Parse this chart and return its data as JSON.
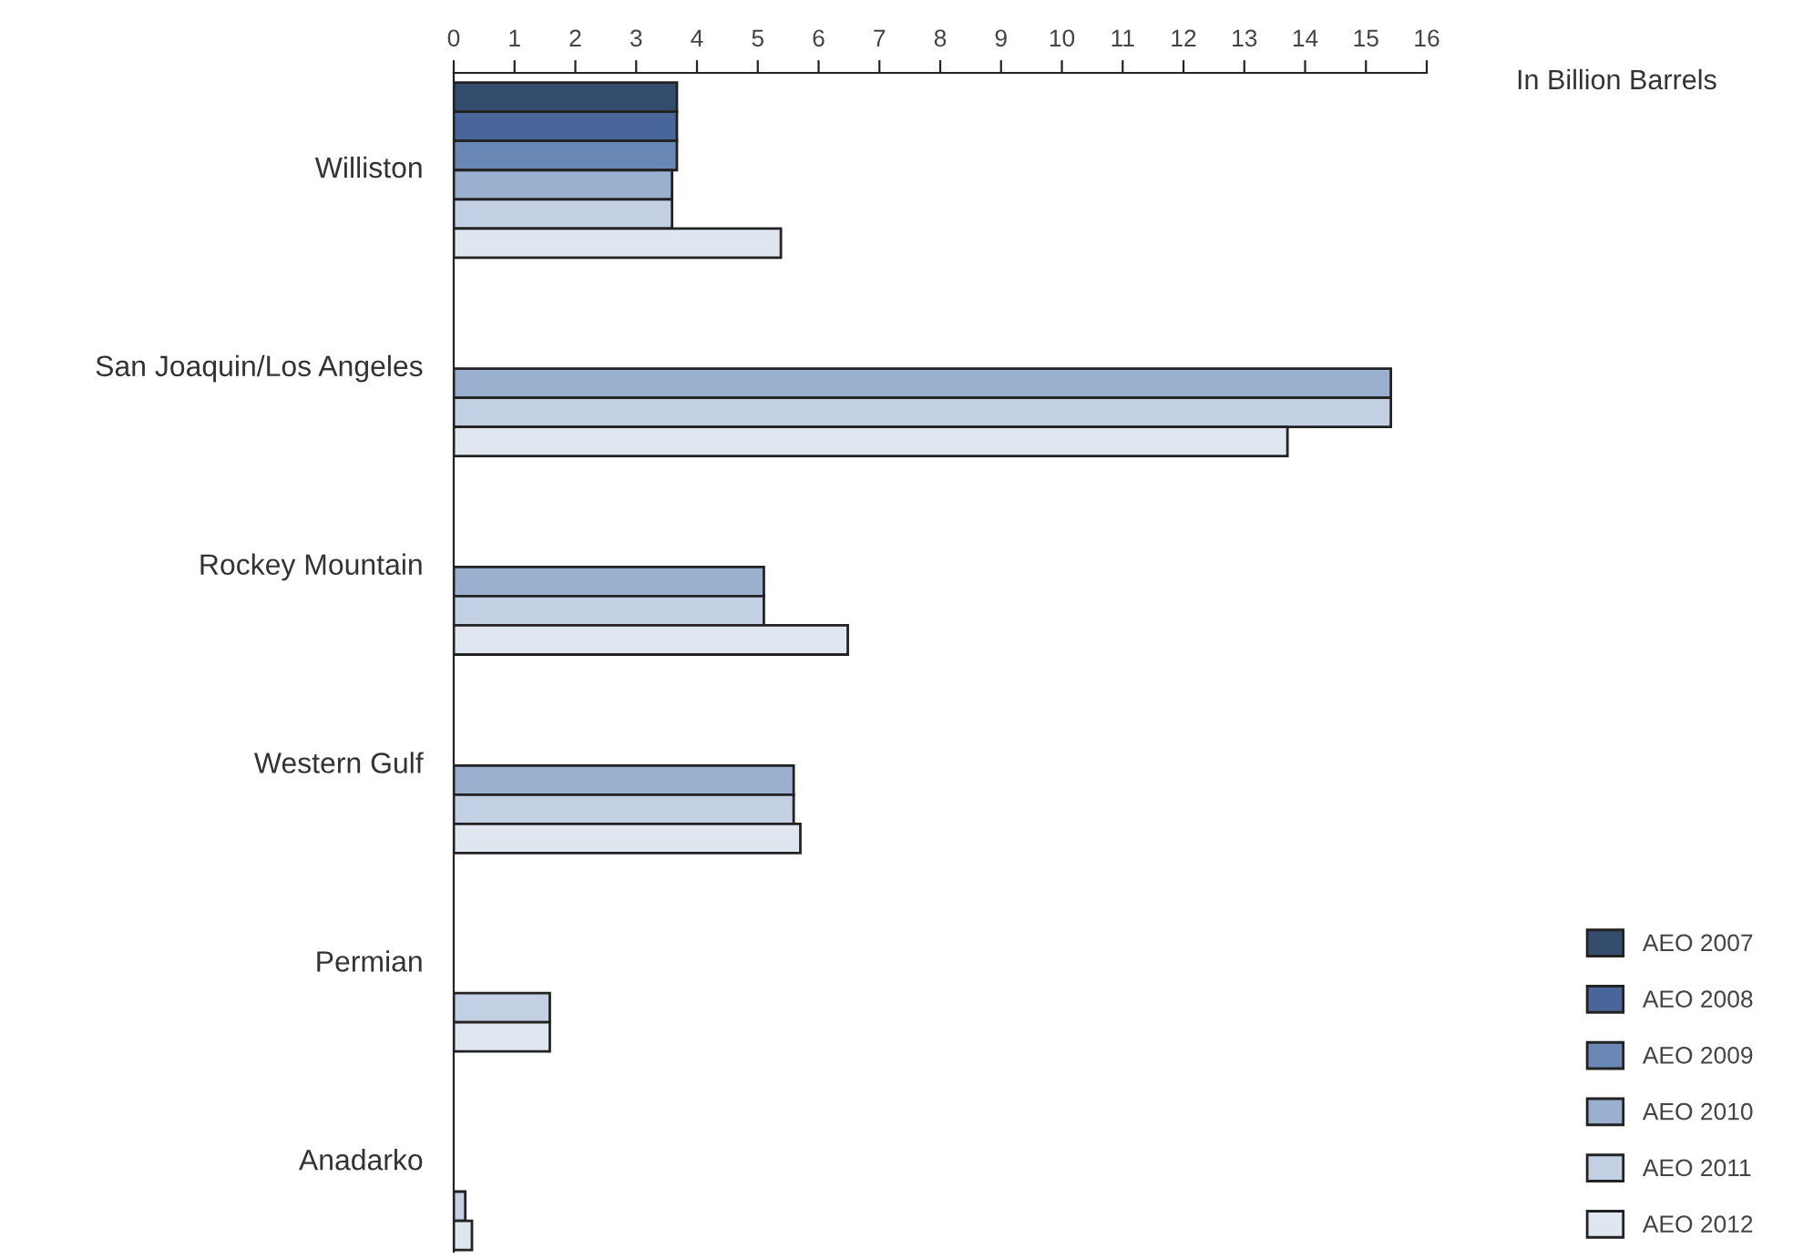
{
  "chart_data": {
    "type": "bar",
    "orientation": "horizontal",
    "xlabel": "In Billion Barrels",
    "categories": [
      "Williston",
      "San Joaquin/Los Angeles",
      "Rockey Mountain",
      "Western Gulf",
      "Permian",
      "Anadarko"
    ],
    "series": [
      {
        "name": "AEO 2007",
        "color": "#344c6e",
        "values": [
          3.67,
          null,
          null,
          null,
          null,
          null
        ]
      },
      {
        "name": "AEO 2008",
        "color": "#48669a",
        "values": [
          3.67,
          null,
          null,
          null,
          null,
          null
        ]
      },
      {
        "name": "AEO 2009",
        "color": "#6a88b6",
        "values": [
          3.67,
          null,
          null,
          null,
          null,
          null
        ]
      },
      {
        "name": "AEO 2010",
        "color": "#9bb0ce",
        "values": [
          3.59,
          15.41,
          5.1,
          5.59,
          null,
          null
        ]
      },
      {
        "name": "AEO 2011",
        "color": "#c3d0e3",
        "values": [
          3.59,
          15.41,
          5.1,
          5.59,
          1.58,
          0.19
        ]
      },
      {
        "name": "AEO 2012",
        "color": "#dfe6f0",
        "values": [
          5.38,
          13.71,
          6.48,
          5.7,
          1.58,
          0.3
        ]
      }
    ],
    "xlim": [
      0,
      16
    ],
    "xticks": [
      0,
      1,
      2,
      3,
      4,
      5,
      6,
      7,
      8,
      9,
      10,
      11,
      12,
      13,
      14,
      15,
      16
    ],
    "grid": false,
    "legend": "bottom right"
  }
}
